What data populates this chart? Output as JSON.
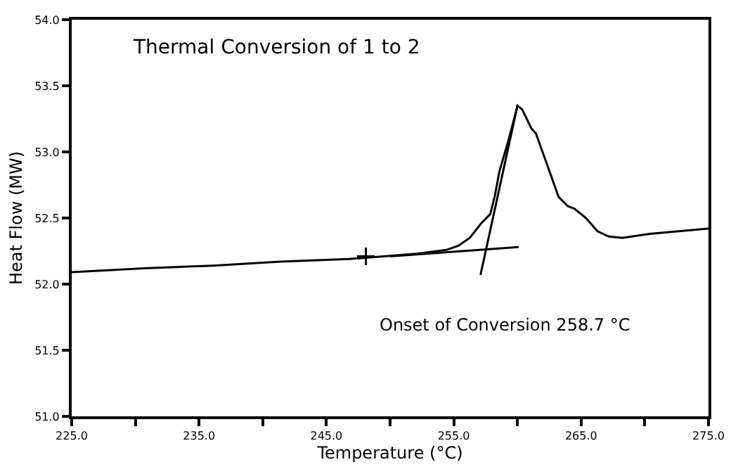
{
  "chart_data": {
    "type": "line",
    "title": "Thermal Conversion of 1 to 2",
    "xlabel": "Temperature (°C)",
    "ylabel": "Heat Flow (MW)",
    "annotations": [
      "Onset of Conversion 258.7 °C"
    ],
    "xlim": [
      225,
      275
    ],
    "ylim": [
      51,
      54
    ],
    "xticks": [
      {
        "value": 225,
        "label": "225.0"
      },
      {
        "value": 230,
        "label": null
      },
      {
        "value": 235,
        "label": "235.0"
      },
      {
        "value": 240,
        "label": null
      },
      {
        "value": 245,
        "label": "245.0"
      },
      {
        "value": 250,
        "label": null
      },
      {
        "value": 255,
        "label": "255.0"
      },
      {
        "value": 260,
        "label": null
      },
      {
        "value": 265,
        "label": "265.0"
      },
      {
        "value": 270,
        "label": null
      },
      {
        "value": 275,
        "label": "275.0"
      }
    ],
    "yticks": [
      {
        "value": 51,
        "label": "51.0"
      },
      {
        "value": 51.5,
        "label": "51.5"
      },
      {
        "value": 52,
        "label": "52.0"
      },
      {
        "value": 52.5,
        "label": "52.5"
      },
      {
        "value": 53,
        "label": "53.0"
      },
      {
        "value": 53.5,
        "label": "53.5"
      },
      {
        "value": 54,
        "label": "54.0"
      }
    ],
    "marker": "none",
    "line_style": "solid",
    "series": [
      {
        "color": "#000000",
        "x": [
          225,
          230.7,
          236.1,
          241.4,
          246.8,
          252.1,
          254.47,
          255.36,
          256.26,
          257.16,
          257.87,
          258.23,
          258.58,
          259.3,
          260.01,
          260.38,
          261.08,
          261.45,
          262.16,
          263.23,
          263.95,
          264.48,
          265.38,
          266.28,
          267.17,
          268.24,
          270.4,
          275
        ],
        "values": [
          52.09,
          52.12,
          52.14,
          52.17,
          52.19,
          52.23,
          52.26,
          52.29,
          52.35,
          52.46,
          52.53,
          52.67,
          52.85,
          53.09,
          53.35,
          53.32,
          53.18,
          53.14,
          52.95,
          52.66,
          52.59,
          52.57,
          52.5,
          52.4,
          52.36,
          52.35,
          52.38,
          52.42
        ]
      },
      {
        "color": "#000000",
        "x": [
          250,
          260.1
        ],
        "values": [
          52.21,
          52.28
        ]
      },
      {
        "color": "#000000",
        "x": [
          257.1,
          260.0
        ],
        "values": [
          52.07,
          53.35
        ]
      },
      {
        "type": "scatter",
        "marker": "cross",
        "color": "#000000",
        "x": [
          248.1
        ],
        "values": [
          52.21
        ]
      }
    ]
  }
}
